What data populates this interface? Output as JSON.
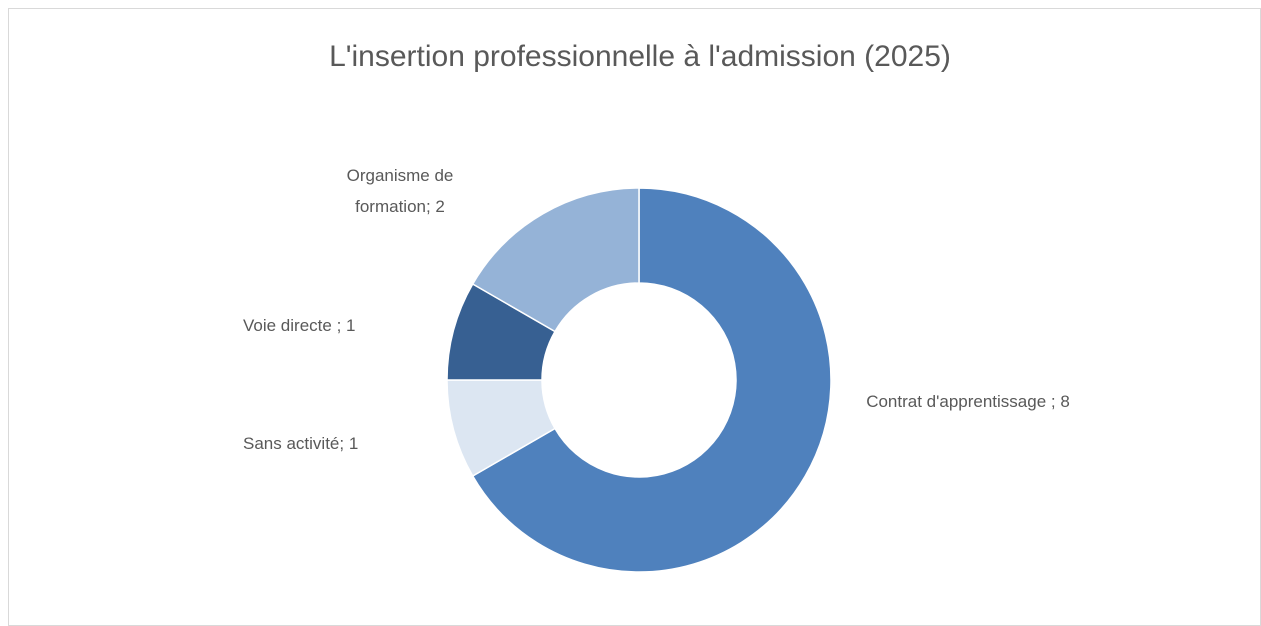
{
  "chart_data": {
    "type": "donut",
    "title": "L'insertion professionnelle à l'admission (2025)",
    "categories": [
      "Contrat d'apprentissage ",
      "Sans activité",
      "Voie directe ",
      "Organisme de formation"
    ],
    "values": [
      8,
      1,
      1,
      2
    ],
    "value_labels": [
      "; 8",
      "; 1",
      "; 1",
      "; 2"
    ],
    "colors": [
      "#4f81bd",
      "#dce6f2",
      "#376092",
      "#95b3d7"
    ]
  }
}
